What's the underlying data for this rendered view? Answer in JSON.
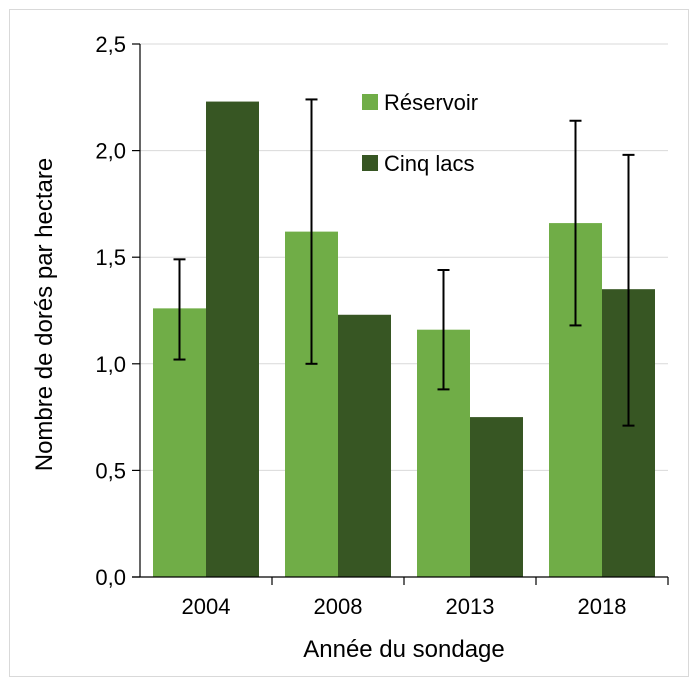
{
  "chart_data": {
    "type": "bar",
    "title": "",
    "xlabel": "Année du sondage",
    "ylabel": "Nombre de dorés par hectare",
    "categories": [
      "2004",
      "2008",
      "2013",
      "2018"
    ],
    "ylim": [
      0,
      2.5
    ],
    "yticks": [
      0,
      0.5,
      1.0,
      1.5,
      2.0,
      2.5
    ],
    "ytick_labels": [
      "0,0",
      "0,5",
      "1,0",
      "1,5",
      "2,0",
      "2,5"
    ],
    "grid": true,
    "legend_position": "top-right",
    "series": [
      {
        "name": "Réservoir",
        "color": "#70ad47",
        "values": [
          1.26,
          1.62,
          1.16,
          1.66
        ],
        "error_low": [
          1.02,
          1.0,
          0.88,
          1.18
        ],
        "error_high": [
          1.49,
          2.24,
          1.44,
          2.14
        ]
      },
      {
        "name": "Cinq lacs",
        "color": "#375623",
        "values": [
          2.23,
          1.23,
          0.75,
          1.35
        ],
        "error_low": [
          null,
          null,
          null,
          0.71
        ],
        "error_high": [
          null,
          null,
          null,
          1.98
        ]
      }
    ]
  }
}
